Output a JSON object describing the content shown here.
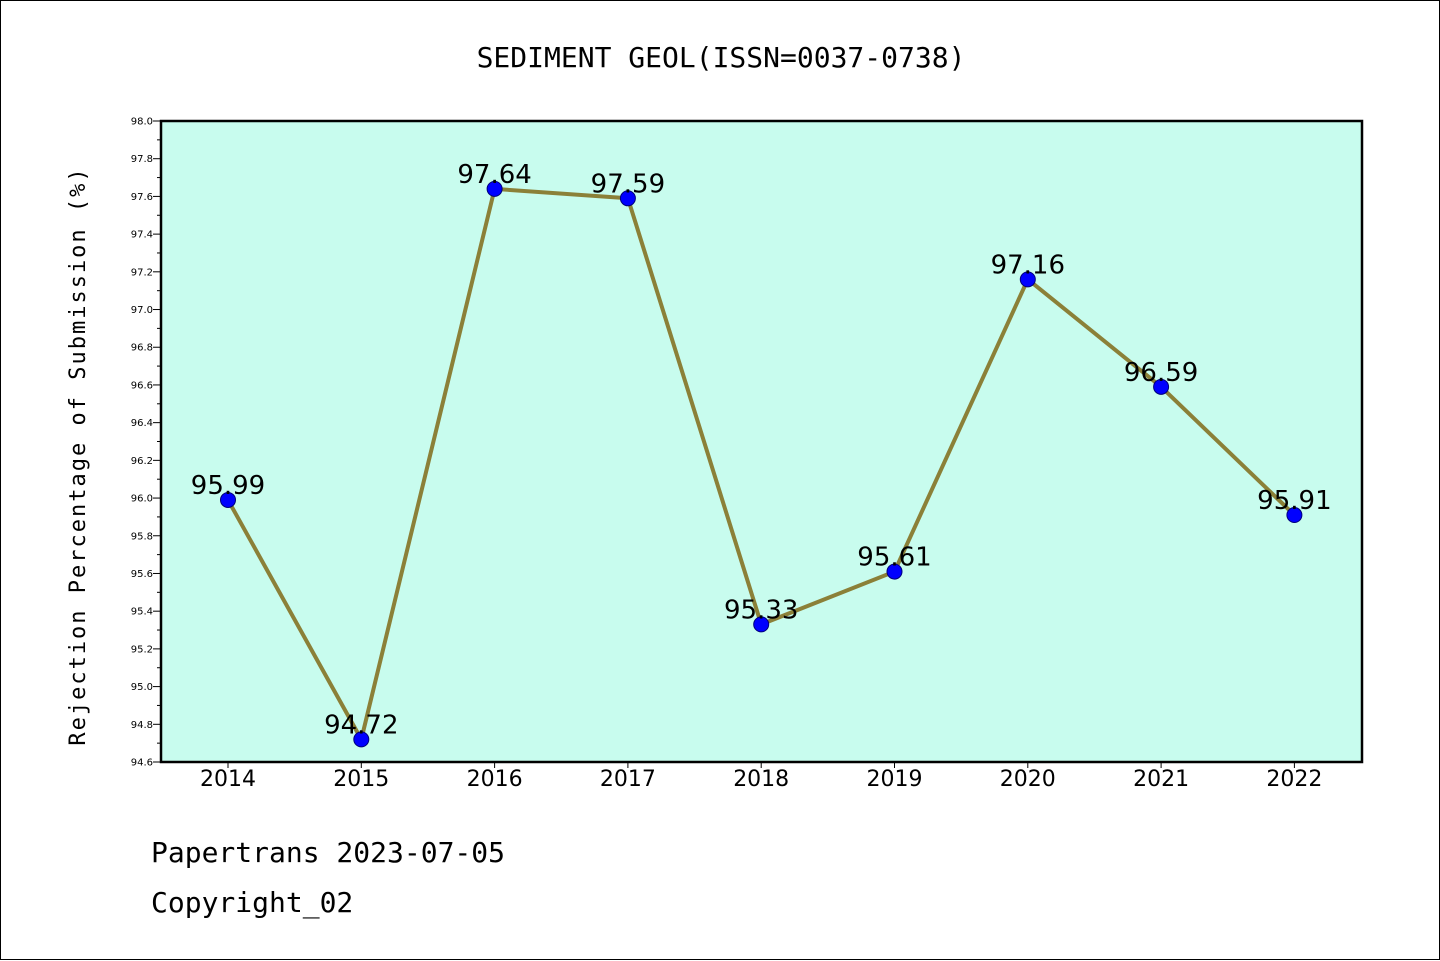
{
  "chart_data": {
    "type": "line",
    "title": "SEDIMENT GEOL(ISSN=0037-0738)",
    "ylabel": "Rejection Percentage of Submission (%)",
    "xlabel": "",
    "categories": [
      "2014",
      "2015",
      "2016",
      "2017",
      "2018",
      "2019",
      "2020",
      "2021",
      "2022"
    ],
    "values": [
      95.99,
      94.72,
      97.64,
      97.59,
      95.33,
      95.61,
      97.16,
      96.59,
      95.91
    ],
    "data_labels": [
      "95.99",
      "94.72",
      "97.64",
      "97.59",
      "95.33",
      "95.61",
      "97.16",
      "96.59",
      "95.91"
    ],
    "ylim": [
      94.6,
      98.0
    ],
    "yticks": [
      "94.6",
      "94.8",
      "95.0",
      "95.2",
      "95.4",
      "95.6",
      "95.8",
      "96.0",
      "96.2",
      "96.4",
      "96.6",
      "96.8",
      "97.0",
      "97.2",
      "97.4",
      "97.6",
      "97.8",
      "98.0"
    ],
    "grid": false,
    "line_color": "#8b8038",
    "marker_color": "#0000ff",
    "plot_background": "#c8fcee"
  },
  "footer": {
    "line1": "Papertrans 2023-07-05",
    "line2": "Copyright_02"
  }
}
